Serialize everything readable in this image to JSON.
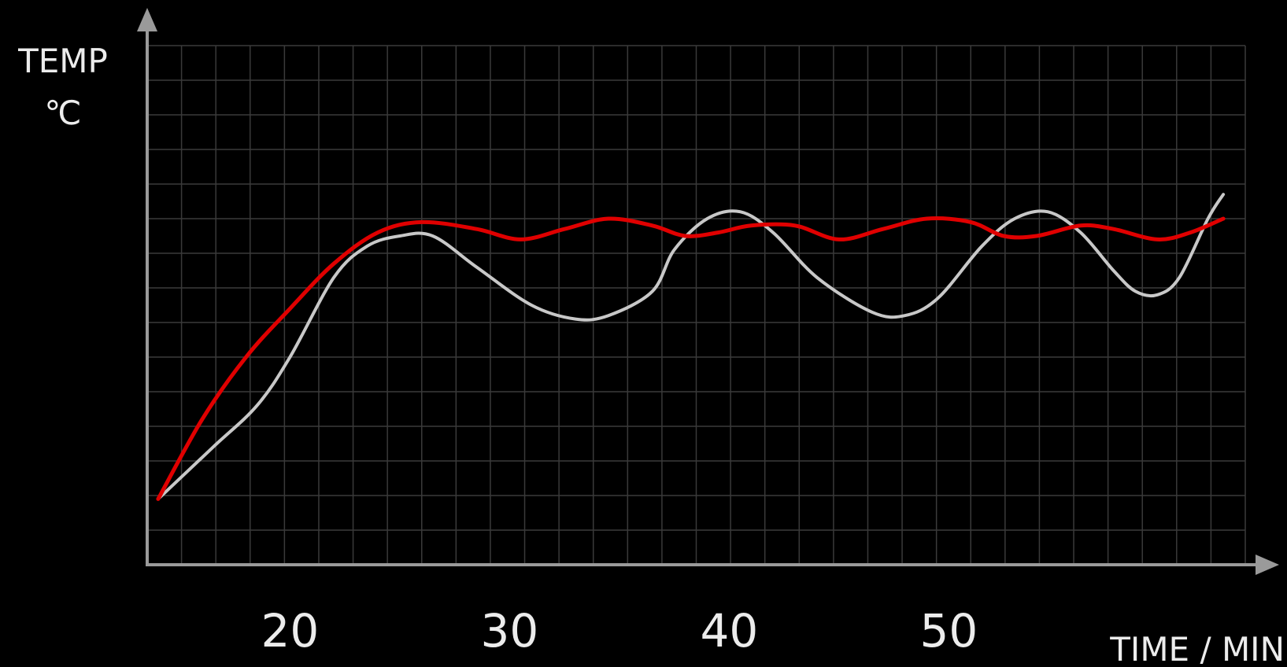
{
  "chart_data": {
    "type": "line",
    "ylabel_line1": "TEMP",
    "ylabel_line2": "℃",
    "xlabel": "TIME / MIN",
    "x_tick_labels": [
      "20",
      "30",
      "40",
      "50"
    ],
    "x_ticks": [
      20,
      30,
      40,
      50
    ],
    "xlim": [
      13.5,
      63.5
    ],
    "ylim": [
      0,
      15
    ],
    "grid": true,
    "colors": {
      "background": "#000000",
      "grid": "#3a3a3a",
      "axis": "#9a9a9a",
      "text": "#ececec"
    },
    "series": [
      {
        "color": "#c8c8c8",
        "points": [
          [
            14.0,
            1.9
          ],
          [
            16.5,
            3.4
          ],
          [
            18.5,
            4.6
          ],
          [
            20.0,
            6.0
          ],
          [
            22.0,
            8.3
          ],
          [
            23.5,
            9.2
          ],
          [
            25.0,
            9.5
          ],
          [
            26.5,
            9.5
          ],
          [
            28.5,
            8.6
          ],
          [
            31.0,
            7.5
          ],
          [
            33.0,
            7.1
          ],
          [
            34.5,
            7.2
          ],
          [
            36.5,
            7.9
          ],
          [
            37.5,
            9.1
          ],
          [
            39.0,
            10.0
          ],
          [
            40.5,
            10.2
          ],
          [
            42.0,
            9.6
          ],
          [
            44.0,
            8.3
          ],
          [
            46.5,
            7.3
          ],
          [
            48.0,
            7.2
          ],
          [
            49.5,
            7.7
          ],
          [
            51.5,
            9.2
          ],
          [
            53.0,
            10.0
          ],
          [
            54.5,
            10.2
          ],
          [
            56.0,
            9.6
          ],
          [
            57.5,
            8.5
          ],
          [
            58.5,
            7.9
          ],
          [
            59.5,
            7.8
          ],
          [
            60.5,
            8.3
          ],
          [
            61.8,
            10.0
          ],
          [
            62.5,
            10.7
          ]
        ]
      },
      {
        "color": "#e00000",
        "points": [
          [
            14.0,
            1.9
          ],
          [
            16.0,
            4.2
          ],
          [
            18.0,
            6.0
          ],
          [
            20.0,
            7.4
          ],
          [
            22.0,
            8.7
          ],
          [
            24.0,
            9.6
          ],
          [
            26.0,
            9.9
          ],
          [
            28.5,
            9.7
          ],
          [
            30.5,
            9.4
          ],
          [
            32.5,
            9.7
          ],
          [
            34.5,
            10.0
          ],
          [
            36.5,
            9.8
          ],
          [
            38.0,
            9.5
          ],
          [
            39.5,
            9.6
          ],
          [
            41.0,
            9.8
          ],
          [
            43.0,
            9.8
          ],
          [
            45.0,
            9.4
          ],
          [
            47.0,
            9.7
          ],
          [
            49.0,
            10.0
          ],
          [
            51.0,
            9.9
          ],
          [
            52.5,
            9.5
          ],
          [
            54.0,
            9.5
          ],
          [
            56.0,
            9.8
          ],
          [
            57.5,
            9.7
          ],
          [
            59.5,
            9.4
          ],
          [
            61.0,
            9.6
          ],
          [
            62.5,
            10.0
          ]
        ]
      }
    ]
  }
}
